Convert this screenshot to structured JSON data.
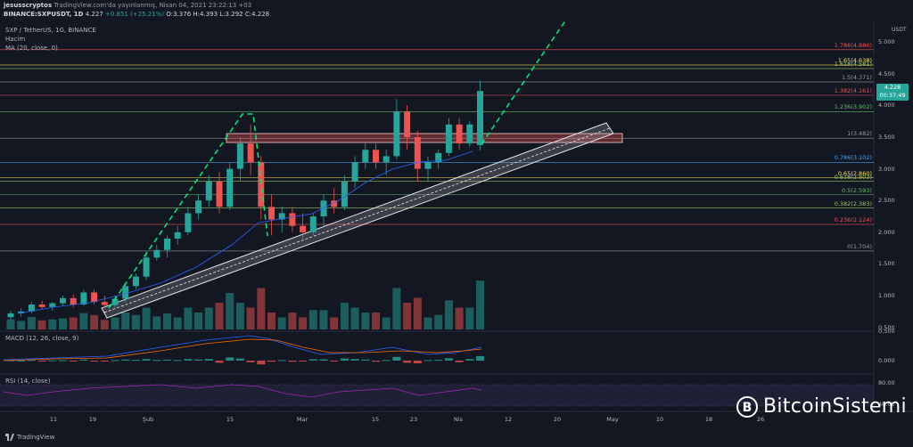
{
  "header": {
    "publisher": "jesusscryptos",
    "published_on": "TradingView.com'da yayınlanmış, Nisan 04, 2021 23:22:13 +03",
    "symbol": "BINANCE:SXPUSDT, 1D",
    "last": "4.227",
    "change": "+0.851 (+25.21%)",
    "o": "O:3.376",
    "h": "H:4.393",
    "l": "L:3.292",
    "c": "C:4.228",
    "pair_title": "SXP / TetherUS, 1G, BINANCE",
    "volume_label": "Hacim",
    "ma_label": "MA (20, close, 0)"
  },
  "axis": {
    "currency": "USDT",
    "price_ticks": [
      "5.000",
      "4.500",
      "4.000",
      "3.500",
      "3.000",
      "2.500",
      "2.000",
      "1.500",
      "1.000",
      "0.500"
    ],
    "time_ticks": [
      "11",
      "19",
      "Şub",
      "15",
      "Mar",
      "15",
      "23",
      "Nis",
      "12",
      "20",
      "May",
      "10",
      "18",
      "26"
    ]
  },
  "price_badge": {
    "price": "4.228",
    "countdown": "00:37:49"
  },
  "fib_levels": [
    {
      "label": "1.786(4.880)",
      "price": 4.88,
      "color": "#ef5350"
    },
    {
      "label": "1.65(4.638)",
      "price": 4.638,
      "color": "#f5e15b"
    },
    {
      "label": "1.618(4.581)",
      "price": 4.581,
      "color": "#9ccc65"
    },
    {
      "label": "1.5(4.371)",
      "price": 4.371,
      "color": "#9598a1"
    },
    {
      "label": "1.382(4.161)",
      "price": 4.161,
      "color": "#ef5350"
    },
    {
      "label": "1.236(3.902)",
      "price": 3.902,
      "color": "#66bb6a"
    },
    {
      "label": "1(3.482)",
      "price": 3.482,
      "color": "#9598a1"
    },
    {
      "label": "0.786(3.102)",
      "price": 3.102,
      "color": "#42a5f5"
    },
    {
      "label": "0.65(2.860)",
      "price": 2.86,
      "color": "#f5e15b"
    },
    {
      "label": "0.618(2.803)",
      "price": 2.803,
      "color": "#9ccc65"
    },
    {
      "label": "0.5(2.593)",
      "price": 2.593,
      "color": "#66bb6a"
    },
    {
      "label": "0.382(2.383)",
      "price": 2.383,
      "color": "#9ccc65"
    },
    {
      "label": "0.236(2.124)",
      "price": 2.124,
      "color": "#ef5350"
    },
    {
      "label": "0(1.704)",
      "price": 1.704,
      "color": "#9598a1"
    }
  ],
  "macd": {
    "label": "MACD (12, 26, close, 9)",
    "ticks": [
      "0.500",
      "0.000"
    ]
  },
  "rsi": {
    "label": "RSI (14, close)",
    "ticks": [
      "80.00",
      "40.00"
    ]
  },
  "footer": {
    "tradingview": "TradingView"
  },
  "brand": {
    "name": "BitcoinSistemi"
  },
  "colors": {
    "bg": "#131722",
    "up": "#26a69a",
    "down": "#ef5350",
    "projection": "#00e676",
    "channel": "#e0e3eb",
    "zone": "#ef9a9a",
    "ma": "#2962ff",
    "rsi": "#9c27b0"
  },
  "chart_data": {
    "type": "candlestick",
    "interval": "1D",
    "ylim": [
      0.4,
      5.4
    ],
    "candles": [
      {
        "x": "2021-01-04",
        "o": 0.66,
        "h": 0.76,
        "l": 0.62,
        "c": 0.72
      },
      {
        "x": "2021-01-06",
        "o": 0.72,
        "h": 0.8,
        "l": 0.67,
        "c": 0.75
      },
      {
        "x": "2021-01-08",
        "o": 0.75,
        "h": 0.9,
        "l": 0.72,
        "c": 0.86
      },
      {
        "x": "2021-01-10",
        "o": 0.86,
        "h": 0.92,
        "l": 0.78,
        "c": 0.82
      },
      {
        "x": "2021-01-12",
        "o": 0.82,
        "h": 0.9,
        "l": 0.76,
        "c": 0.88
      },
      {
        "x": "2021-01-14",
        "o": 0.88,
        "h": 1.0,
        "l": 0.84,
        "c": 0.96
      },
      {
        "x": "2021-01-16",
        "o": 0.96,
        "h": 1.02,
        "l": 0.82,
        "c": 0.86
      },
      {
        "x": "2021-01-18",
        "o": 0.86,
        "h": 1.1,
        "l": 0.84,
        "c": 1.05
      },
      {
        "x": "2021-01-20",
        "o": 1.05,
        "h": 1.1,
        "l": 0.86,
        "c": 0.9
      },
      {
        "x": "2021-01-22",
        "o": 0.9,
        "h": 1.0,
        "l": 0.8,
        "c": 0.85
      },
      {
        "x": "2021-01-24",
        "o": 0.85,
        "h": 1.0,
        "l": 0.82,
        "c": 0.95
      },
      {
        "x": "2021-01-26",
        "o": 0.95,
        "h": 1.2,
        "l": 0.9,
        "c": 1.15
      },
      {
        "x": "2021-01-28",
        "o": 1.15,
        "h": 1.35,
        "l": 1.1,
        "c": 1.3
      },
      {
        "x": "2021-01-30",
        "o": 1.3,
        "h": 1.7,
        "l": 1.25,
        "c": 1.6
      },
      {
        "x": "2021-02-01",
        "o": 1.6,
        "h": 1.8,
        "l": 1.55,
        "c": 1.72
      },
      {
        "x": "2021-02-03",
        "o": 1.72,
        "h": 1.95,
        "l": 1.6,
        "c": 1.9
      },
      {
        "x": "2021-02-05",
        "o": 1.9,
        "h": 2.1,
        "l": 1.8,
        "c": 2.0
      },
      {
        "x": "2021-02-07",
        "o": 2.0,
        "h": 2.4,
        "l": 1.95,
        "c": 2.3
      },
      {
        "x": "2021-02-09",
        "o": 2.3,
        "h": 2.6,
        "l": 2.2,
        "c": 2.5
      },
      {
        "x": "2021-02-11",
        "o": 2.5,
        "h": 2.9,
        "l": 2.4,
        "c": 2.8
      },
      {
        "x": "2021-02-13",
        "o": 2.8,
        "h": 2.95,
        "l": 2.3,
        "c": 2.4
      },
      {
        "x": "2021-02-15",
        "o": 2.4,
        "h": 3.1,
        "l": 2.35,
        "c": 3.0
      },
      {
        "x": "2021-02-17",
        "o": 3.0,
        "h": 3.5,
        "l": 2.8,
        "c": 3.4
      },
      {
        "x": "2021-02-19",
        "o": 3.4,
        "h": 3.7,
        "l": 2.9,
        "c": 3.1
      },
      {
        "x": "2021-02-21",
        "o": 3.1,
        "h": 3.2,
        "l": 2.2,
        "c": 2.4
      },
      {
        "x": "2021-02-23",
        "o": 2.4,
        "h": 2.6,
        "l": 1.95,
        "c": 2.2
      },
      {
        "x": "2021-02-25",
        "o": 2.2,
        "h": 2.4,
        "l": 2.0,
        "c": 2.3
      },
      {
        "x": "2021-02-27",
        "o": 2.3,
        "h": 2.4,
        "l": 2.0,
        "c": 2.1
      },
      {
        "x": "2021-03-01",
        "o": 2.1,
        "h": 2.3,
        "l": 1.9,
        "c": 2.0
      },
      {
        "x": "2021-03-03",
        "o": 2.0,
        "h": 2.3,
        "l": 1.95,
        "c": 2.25
      },
      {
        "x": "2021-03-05",
        "o": 2.25,
        "h": 2.6,
        "l": 2.1,
        "c": 2.5
      },
      {
        "x": "2021-03-07",
        "o": 2.5,
        "h": 2.7,
        "l": 2.3,
        "c": 2.4
      },
      {
        "x": "2021-03-09",
        "o": 2.4,
        "h": 2.9,
        "l": 2.35,
        "c": 2.8
      },
      {
        "x": "2021-03-11",
        "o": 2.8,
        "h": 3.2,
        "l": 2.7,
        "c": 3.1
      },
      {
        "x": "2021-03-13",
        "o": 3.1,
        "h": 3.4,
        "l": 3.0,
        "c": 3.3
      },
      {
        "x": "2021-03-15",
        "o": 3.3,
        "h": 3.4,
        "l": 3.0,
        "c": 3.1
      },
      {
        "x": "2021-03-17",
        "o": 3.1,
        "h": 3.3,
        "l": 2.9,
        "c": 3.2
      },
      {
        "x": "2021-03-19",
        "o": 3.2,
        "h": 4.1,
        "l": 3.15,
        "c": 3.9
      },
      {
        "x": "2021-03-21",
        "o": 3.9,
        "h": 4.0,
        "l": 3.3,
        "c": 3.5
      },
      {
        "x": "2021-03-23",
        "o": 3.5,
        "h": 3.6,
        "l": 2.8,
        "c": 3.0
      },
      {
        "x": "2021-03-25",
        "o": 3.0,
        "h": 3.2,
        "l": 2.8,
        "c": 3.1
      },
      {
        "x": "2021-03-27",
        "o": 3.1,
        "h": 3.3,
        "l": 3.0,
        "c": 3.25
      },
      {
        "x": "2021-03-29",
        "o": 3.25,
        "h": 3.8,
        "l": 3.2,
        "c": 3.7
      },
      {
        "x": "2021-03-31",
        "o": 3.7,
        "h": 3.8,
        "l": 3.3,
        "c": 3.4
      },
      {
        "x": "2021-04-02",
        "o": 3.4,
        "h": 3.75,
        "l": 3.35,
        "c": 3.7
      },
      {
        "x": "2021-04-04",
        "o": 3.376,
        "h": 4.393,
        "l": 3.292,
        "c": 4.228
      }
    ]
  }
}
